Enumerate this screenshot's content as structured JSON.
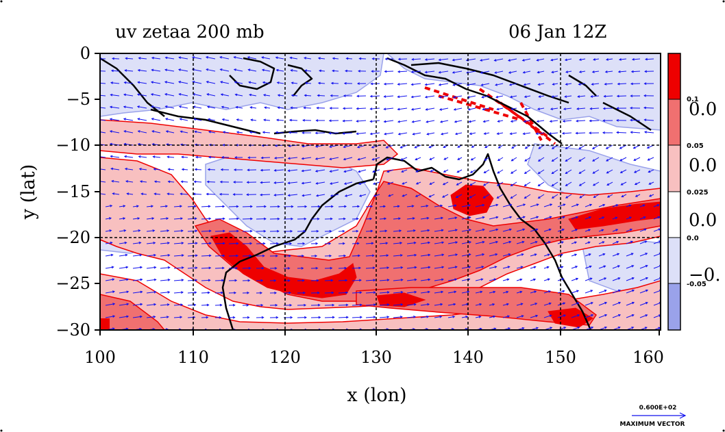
{
  "chart_data": {
    "type": "heatmap",
    "title_left": "uv zetaa 200 mb",
    "title_right": "06 Jan 12Z",
    "xlabel": "x (lon)",
    "ylabel": "y (lat)",
    "xlim": [
      100,
      160
    ],
    "ylim": [
      -30,
      0
    ],
    "x_ticks": [
      "100",
      "110",
      "120",
      "130",
      "140",
      "150",
      "160"
    ],
    "y_ticks": [
      "0",
      "−5",
      "−10",
      "−15",
      "−20",
      "−25",
      "−30"
    ],
    "grid": true,
    "colorbar": {
      "levels": [
        {
          "label": "0.1",
          "color": "#ee0000"
        },
        {
          "label": "0.05",
          "color": "#f07070"
        },
        {
          "label": "0.025",
          "color": "#f8c0c0"
        },
        {
          "label": "0.0",
          "color": "#ffffff"
        },
        {
          "label": "-0.05",
          "color": "#dde0f8"
        },
        {
          "label": "",
          "color": "#9aa2ea"
        }
      ],
      "overlap_labels": [
        "0.0",
        "0.0",
        "0.0",
        "−0."
      ]
    },
    "vector_key": {
      "value": "0.600E+02",
      "label": "MAXIMUM VECTOR"
    },
    "colors": {
      "strong_pos": "#ee0000",
      "mid_pos": "#f07070",
      "weak_pos": "#f8c0c0",
      "weak_neg": "#dde0f8",
      "strong_neg": "#9aa2ea",
      "vectors": "#1010ee",
      "coast": "#000000"
    }
  }
}
